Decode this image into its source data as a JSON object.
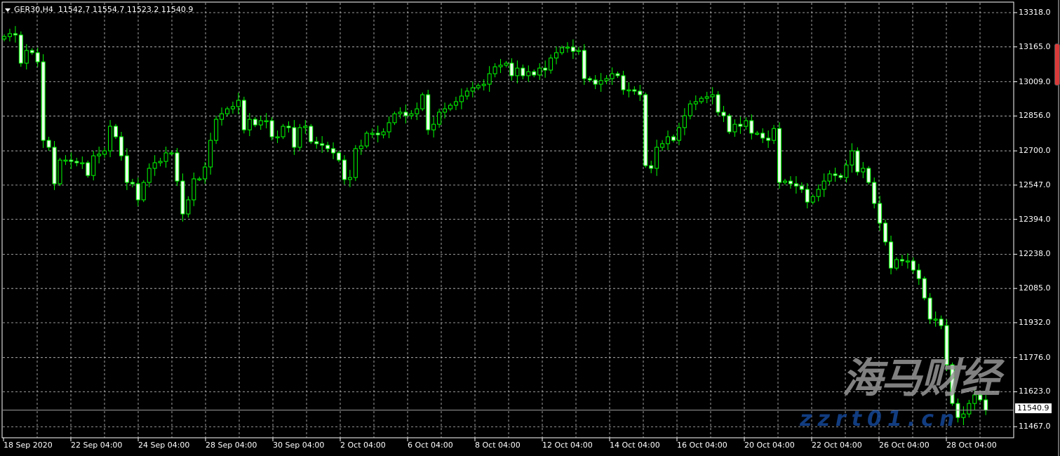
{
  "header": {
    "symbol_timeframe": "GER30,H4",
    "ohlc_readout": "11542.7 11554.7 11523.2 11540.9"
  },
  "current_price_label": "11540.9",
  "watermark": {
    "logo_text": "海马财经",
    "site": "zzrt01.cn"
  },
  "colors": {
    "background": "#000000",
    "grid": "#c8c8c8",
    "wick": "#00ff00",
    "bull_body": "#000000",
    "bear_body": "#eaffea",
    "axis_text": "#ffffff",
    "scroll_marker": "#d83a3a"
  },
  "chart_data": {
    "type": "candlestick",
    "title": "",
    "grid": true,
    "y_ticks": [
      "13318.0",
      "13165.0",
      "13009.0",
      "12856.0",
      "12700.0",
      "12547.0",
      "12394.0",
      "12238.0",
      "12085.0",
      "11932.0",
      "11776.0",
      "11623.0",
      "11467.0"
    ],
    "ylim": [
      11420,
      13360
    ],
    "x_ticks": [
      "18 Sep 2020",
      "22 Sep 04:00",
      "24 Sep 04:00",
      "28 Sep 04:00",
      "30 Sep 04:00",
      "2 Oct 04:00",
      "6 Oct 04:00",
      "8 Oct 04:00",
      "12 Oct 04:00",
      "14 Oct 04:00",
      "16 Oct 04:00",
      "20 Oct 04:00",
      "22 Oct 04:00",
      "26 Oct 04:00",
      "28 Oct 04:00"
    ],
    "first_open": 13200,
    "close": [
      13211,
      13224,
      13218,
      13092,
      13149,
      13139,
      13098,
      12747,
      12716,
      12553,
      12659,
      12659,
      12653,
      12647,
      12647,
      12590,
      12678,
      12685,
      12700,
      12810,
      12763,
      12678,
      12559,
      12553,
      12481,
      12559,
      12622,
      12647,
      12653,
      12691,
      12691,
      12565,
      12418,
      12481,
      12575,
      12575,
      12628,
      12747,
      12841,
      12866,
      12888,
      12898,
      12926,
      12794,
      12841,
      12816,
      12835,
      12835,
      12763,
      12763,
      12810,
      12804,
      12716,
      12804,
      12810,
      12741,
      12732,
      12725,
      12710,
      12691,
      12659,
      12572,
      12581,
      12710,
      12722,
      12779,
      12779,
      12772,
      12785,
      12826,
      12866,
      12873,
      12857,
      12866,
      12888,
      12951,
      12794,
      12819,
      12873,
      12888,
      12904,
      12920,
      12945,
      12967,
      12982,
      12992,
      12998,
      13045,
      13076,
      13083,
      13092,
      13036,
      13070,
      13036,
      13054,
      13039,
      13070,
      13061,
      13115,
      13139,
      13161,
      13164,
      13145,
      13149,
      13023,
      13017,
      12998,
      13014,
      13023,
      13045,
      13036,
      12973,
      12973,
      12967,
      12951,
      12634,
      12622,
      12716,
      12732,
      12763,
      12747,
      12804,
      12857,
      12910,
      12920,
      12935,
      12942,
      12951,
      12873,
      12857,
      12785,
      12819,
      12810,
      12835,
      12779,
      12779,
      12757,
      12747,
      12800,
      12559,
      12565,
      12553,
      12543,
      12528,
      12471,
      12496,
      12528,
      12565,
      12597,
      12590,
      12581,
      12637,
      12700,
      12606,
      12622,
      12559,
      12465,
      12377,
      12293,
      12176,
      12214,
      12208,
      12208,
      12167,
      12129,
      12042,
      11948,
      11948,
      11919,
      11744,
      11571,
      11508,
      11524,
      11571,
      11609,
      11587,
      11541
    ],
    "last": {
      "open": 11542.7,
      "high": 11554.7,
      "low": 11523.2,
      "close": 11540.9
    }
  }
}
